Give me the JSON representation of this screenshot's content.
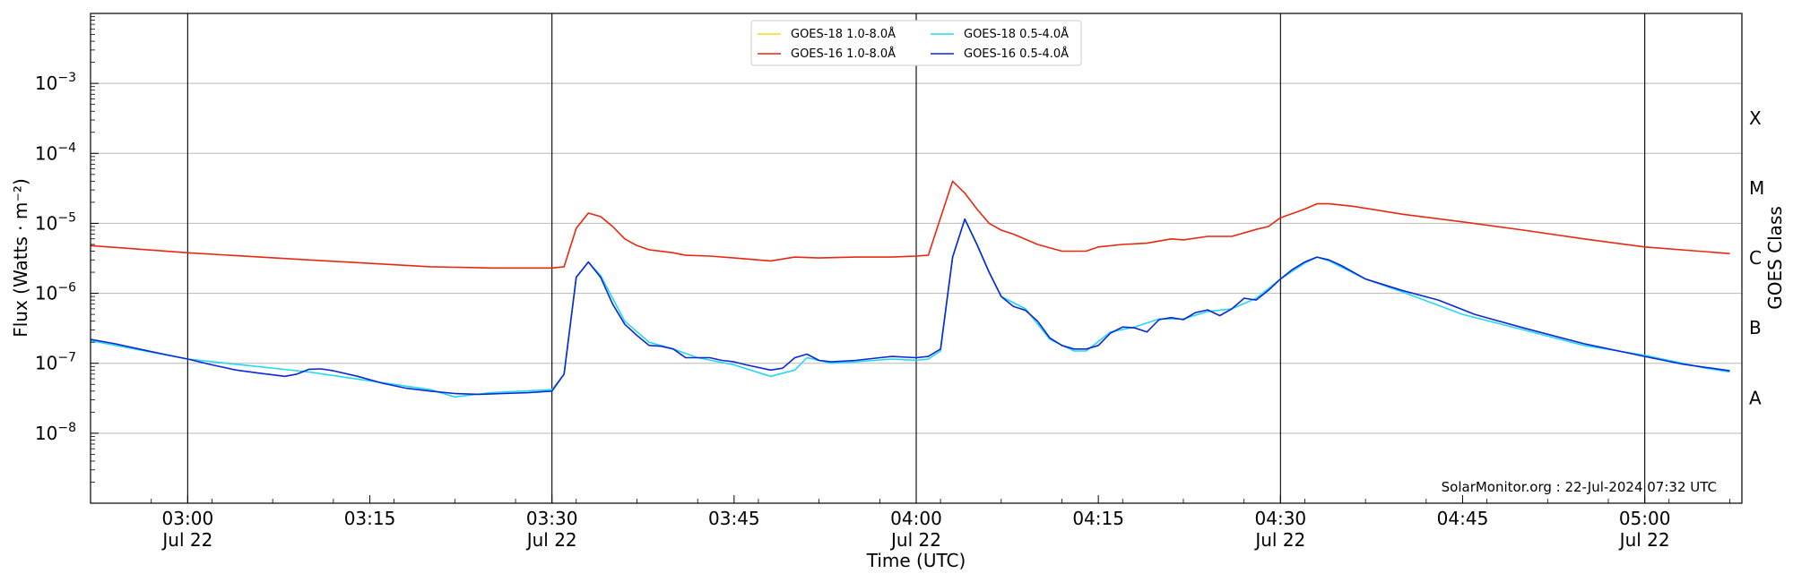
{
  "chart_data": {
    "type": "line",
    "xlabel": "Time (UTC)",
    "ylabel": "Flux (Watts · m⁻²)",
    "y2label": "GOES Class",
    "yscale": "log",
    "xlim": [
      "02:52",
      "05:08"
    ],
    "ylim": [
      1e-09,
      0.01
    ],
    "grid": "horizontal at decades",
    "legend_position": "top-center",
    "x_ticks": [
      {
        "time": "03:00",
        "label": "03:00",
        "sub": "Jul 22"
      },
      {
        "time": "03:15",
        "label": "03:15",
        "sub": ""
      },
      {
        "time": "03:30",
        "label": "03:30",
        "sub": "Jul 22"
      },
      {
        "time": "03:45",
        "label": "03:45",
        "sub": ""
      },
      {
        "time": "04:00",
        "label": "04:00",
        "sub": "Jul 22"
      },
      {
        "time": "04:15",
        "label": "04:15",
        "sub": ""
      },
      {
        "time": "04:30",
        "label": "04:30",
        "sub": "Jul 22"
      },
      {
        "time": "04:45",
        "label": "04:45",
        "sub": ""
      },
      {
        "time": "05:00",
        "label": "05:00",
        "sub": "Jul 22"
      }
    ],
    "day_lines": [
      "03:00",
      "03:30",
      "04:00",
      "04:30",
      "05:00"
    ],
    "y_ticks": [
      {
        "value": 0.001,
        "base": "10",
        "exp": "−3"
      },
      {
        "value": 0.0001,
        "base": "10",
        "exp": "−4"
      },
      {
        "value": 1e-05,
        "base": "10",
        "exp": "−5"
      },
      {
        "value": 1e-06,
        "base": "10",
        "exp": "−6"
      },
      {
        "value": 1e-07,
        "base": "10",
        "exp": "−7"
      },
      {
        "value": 1e-08,
        "base": "10",
        "exp": "−8"
      }
    ],
    "goes_classes": [
      {
        "label": "X",
        "value": 0.00032
      },
      {
        "label": "M",
        "value": 3.2e-05
      },
      {
        "label": "C",
        "value": 3.2e-06
      },
      {
        "label": "B",
        "value": 3.2e-07
      },
      {
        "label": "A",
        "value": 3.2e-08
      }
    ],
    "series": [
      {
        "name": "GOES-18 1.0-8.0Å",
        "color": "#ffd21f",
        "shown": false,
        "x": [],
        "y": []
      },
      {
        "name": "GOES-16 1.0-8.0Å",
        "color": "#e8280f",
        "x": [
          "02:52",
          "03:00",
          "03:10",
          "03:20",
          "03:25",
          "03:30",
          "03:31",
          "03:32",
          "03:33",
          "03:34",
          "03:35",
          "03:36",
          "03:37",
          "03:38",
          "03:40",
          "03:41",
          "03:43",
          "03:45",
          "03:48",
          "03:50",
          "03:52",
          "03:55",
          "03:58",
          "04:00",
          "04:01",
          "04:02",
          "04:03",
          "04:04",
          "04:05",
          "04:06",
          "04:07",
          "04:08",
          "04:10",
          "04:12",
          "04:14",
          "04:15",
          "04:17",
          "04:19",
          "04:21",
          "04:22",
          "04:24",
          "04:26",
          "04:28",
          "04:29",
          "04:30",
          "04:32",
          "04:33",
          "04:34",
          "04:36",
          "04:40",
          "04:45",
          "04:50",
          "04:55",
          "05:00",
          "05:07"
        ],
        "y": [
          4.8e-06,
          3.8e-06,
          3e-06,
          2.4e-06,
          2.3e-06,
          2.3e-06,
          2.4e-06,
          8.5e-06,
          1.4e-05,
          1.25e-05,
          9e-06,
          6e-06,
          4.8e-06,
          4.2e-06,
          3.8e-06,
          3.5e-06,
          3.4e-06,
          3.2e-06,
          2.9e-06,
          3.3e-06,
          3.2e-06,
          3.3e-06,
          3.3e-06,
          3.4e-06,
          3.5e-06,
          1.2e-05,
          4e-05,
          2.7e-05,
          1.6e-05,
          1e-05,
          8e-06,
          7e-06,
          5e-06,
          4e-06,
          4e-06,
          4.6e-06,
          5e-06,
          5.2e-06,
          6e-06,
          5.8e-06,
          6.5e-06,
          6.5e-06,
          8.2e-06,
          9e-06,
          1.2e-05,
          1.6e-05,
          1.9e-05,
          1.9e-05,
          1.75e-05,
          1.35e-05,
          1.05e-05,
          8e-06,
          6e-06,
          4.6e-06,
          3.7e-06
        ]
      },
      {
        "name": "GOES-18 0.5-4.0Å",
        "color": "#23d8f0",
        "x": [
          "02:52",
          "03:00",
          "03:10",
          "03:20",
          "03:22",
          "03:25",
          "03:30",
          "03:31",
          "03:32",
          "03:33",
          "03:34",
          "03:36",
          "03:38",
          "03:40",
          "03:42",
          "03:45",
          "03:48",
          "03:50",
          "03:51",
          "03:53",
          "03:55",
          "03:58",
          "04:00",
          "04:01",
          "04:02",
          "04:03",
          "04:04",
          "04:05",
          "04:06",
          "04:07",
          "04:09",
          "04:11",
          "04:13",
          "04:14",
          "04:16",
          "04:18",
          "04:20",
          "04:22",
          "04:24",
          "04:26",
          "04:28",
          "04:30",
          "04:32",
          "04:33",
          "04:34",
          "04:37",
          "04:40",
          "04:45",
          "04:50",
          "04:55",
          "05:00",
          "05:05",
          "05:07"
        ],
        "y": [
          2.1e-07,
          1.15e-07,
          7.5e-08,
          4.2e-08,
          3.3e-08,
          3.8e-08,
          4.2e-08,
          7e-08,
          1.7e-06,
          2.8e-06,
          1.8e-06,
          4e-07,
          2e-07,
          1.6e-07,
          1.2e-07,
          9.5e-08,
          6.5e-08,
          8e-08,
          1.2e-07,
          1e-07,
          1.05e-07,
          1.15e-07,
          1.1e-07,
          1.15e-07,
          1.5e-07,
          3.3e-06,
          1.15e-05,
          5e-06,
          2e-06,
          9e-07,
          6e-07,
          2.2e-07,
          1.5e-07,
          1.5e-07,
          2.8e-07,
          3.3e-07,
          4.3e-07,
          4.3e-07,
          5.5e-07,
          6e-07,
          8.5e-07,
          1.6e-06,
          2.7e-06,
          3.3e-06,
          2.9e-06,
          1.6e-06,
          1.05e-06,
          5e-07,
          3e-07,
          1.8e-07,
          1.3e-07,
          8.5e-08,
          7.5e-08
        ]
      },
      {
        "name": "GOES-16 0.5-4.0Å",
        "color": "#0a27d8",
        "x": [
          "02:52",
          "02:54",
          "02:56",
          "02:58",
          "03:00",
          "03:02",
          "03:04",
          "03:06",
          "03:08",
          "03:09",
          "03:10",
          "03:11",
          "03:12",
          "03:14",
          "03:16",
          "03:18",
          "03:20",
          "03:22",
          "03:24",
          "03:26",
          "03:28",
          "03:30",
          "03:31",
          "03:32",
          "03:33",
          "03:34",
          "03:35",
          "03:36",
          "03:37",
          "03:38",
          "03:39",
          "03:40",
          "03:41",
          "03:43",
          "03:44",
          "03:45",
          "03:46",
          "03:48",
          "03:49",
          "03:50",
          "03:51",
          "03:52",
          "03:53",
          "03:55",
          "03:57",
          "03:58",
          "04:00",
          "04:01",
          "04:02",
          "04:03",
          "04:04",
          "04:05",
          "04:06",
          "04:07",
          "04:08",
          "04:09",
          "04:10",
          "04:11",
          "04:12",
          "04:13",
          "04:14",
          "04:15",
          "04:16",
          "04:17",
          "04:18",
          "04:19",
          "04:20",
          "04:21",
          "04:22",
          "04:23",
          "04:24",
          "04:25",
          "04:26",
          "04:27",
          "04:28",
          "04:29",
          "04:30",
          "04:31",
          "04:32",
          "04:33",
          "04:34",
          "04:35",
          "04:37",
          "04:40",
          "04:43",
          "04:46",
          "04:50",
          "04:55",
          "05:00",
          "05:03",
          "05:07"
        ],
        "y": [
          2.2e-07,
          1.9e-07,
          1.6e-07,
          1.35e-07,
          1.15e-07,
          9.5e-08,
          8e-08,
          7.2e-08,
          6.5e-08,
          7e-08,
          8.2e-08,
          8.3e-08,
          7.8e-08,
          6.5e-08,
          5.2e-08,
          4.4e-08,
          4e-08,
          3.7e-08,
          3.6e-08,
          3.7e-08,
          3.8e-08,
          4e-08,
          7e-08,
          1.7e-06,
          2.8e-06,
          1.7e-06,
          7e-07,
          3.6e-07,
          2.5e-07,
          1.8e-07,
          1.75e-07,
          1.6e-07,
          1.2e-07,
          1.2e-07,
          1.1e-07,
          1.05e-07,
          9.5e-08,
          8e-08,
          8.5e-08,
          1.2e-07,
          1.35e-07,
          1.1e-07,
          1.05e-07,
          1.1e-07,
          1.2e-07,
          1.25e-07,
          1.2e-07,
          1.25e-07,
          1.6e-07,
          3.3e-06,
          1.15e-05,
          5e-06,
          2e-06,
          9e-07,
          6.5e-07,
          5.7e-07,
          4e-07,
          2.3e-07,
          1.8e-07,
          1.6e-07,
          1.6e-07,
          1.8e-07,
          2.7e-07,
          3.3e-07,
          3.2e-07,
          2.8e-07,
          4.2e-07,
          4.5e-07,
          4.2e-07,
          5.3e-07,
          5.8e-07,
          4.8e-07,
          6e-07,
          8.5e-07,
          8e-07,
          1.1e-06,
          1.6e-06,
          2.2e-06,
          2.8e-06,
          3.3e-06,
          3e-06,
          2.5e-06,
          1.6e-06,
          1.1e-06,
          8e-07,
          5e-07,
          3.2e-07,
          1.9e-07,
          1.25e-07,
          9.8e-08,
          7.8e-08
        ]
      }
    ]
  },
  "footer": {
    "credit": "SolarMonitor.org : 22-Jul-2024 07:32 UTC"
  }
}
